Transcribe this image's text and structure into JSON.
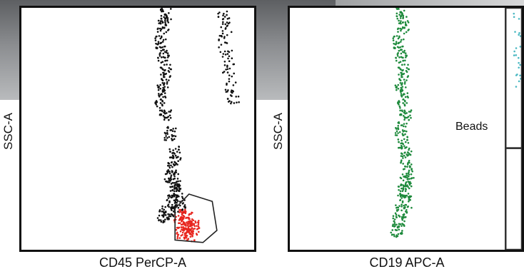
{
  "colors": {
    "panel1_points": "#111111",
    "panel1_gate_fill": "#e8261f",
    "panel1_gate_outline": "#222222",
    "panel2_points": "#1e8a3c",
    "panel2_beads": "#4bb8c2",
    "frame": "#111111"
  },
  "chart_data": [
    {
      "type": "scatter",
      "title": "",
      "xlabel": "CD45 PerCP-A",
      "ylabel": "SSC-A",
      "series": [
        {
          "color": "#111111",
          "density": "high",
          "points": [
            [
              0.62,
              0.97
            ],
            [
              0.61,
              0.92
            ],
            [
              0.6,
              0.86
            ],
            [
              0.61,
              0.8
            ],
            [
              0.62,
              0.74
            ],
            [
              0.61,
              0.68
            ],
            [
              0.6,
              0.62
            ],
            [
              0.62,
              0.56
            ],
            [
              0.64,
              0.48
            ],
            [
              0.66,
              0.4
            ],
            [
              0.65,
              0.34
            ],
            [
              0.64,
              0.3
            ],
            [
              0.66,
              0.27
            ],
            [
              0.67,
              0.24
            ],
            [
              0.65,
              0.2
            ],
            [
              0.68,
              0.18
            ],
            [
              0.63,
              0.16
            ],
            [
              0.61,
              0.14
            ]
          ]
        },
        {
          "color": "#111111",
          "density": "medium",
          "points": [
            [
              0.87,
              0.98
            ],
            [
              0.88,
              0.92
            ],
            [
              0.87,
              0.86
            ],
            [
              0.88,
              0.8
            ],
            [
              0.89,
              0.74
            ],
            [
              0.9,
              0.68
            ],
            [
              0.91,
              0.63
            ]
          ]
        },
        {
          "color": "#e8261f",
          "density": "high",
          "points": [
            [
              0.68,
              0.14
            ],
            [
              0.7,
              0.11
            ],
            [
              0.72,
              0.09
            ],
            [
              0.69,
              0.07
            ],
            [
              0.73,
              0.06
            ],
            [
              0.71,
              0.13
            ],
            [
              0.74,
              0.1
            ]
          ]
        }
      ],
      "gate": {
        "label": "",
        "polygon": [
          [
            0.66,
            0.04
          ],
          [
            0.66,
            0.17
          ],
          [
            0.72,
            0.23
          ],
          [
            0.82,
            0.2
          ],
          [
            0.84,
            0.08
          ],
          [
            0.78,
            0.03
          ]
        ]
      }
    },
    {
      "type": "scatter",
      "title": "",
      "xlabel": "CD19 APC-A",
      "ylabel": "SSC-A",
      "series": [
        {
          "color": "#1e8a3c",
          "density": "high",
          "points": [
            [
              0.48,
              0.98
            ],
            [
              0.49,
              0.92
            ],
            [
              0.47,
              0.86
            ],
            [
              0.48,
              0.8
            ],
            [
              0.49,
              0.74
            ],
            [
              0.48,
              0.68
            ],
            [
              0.49,
              0.62
            ],
            [
              0.5,
              0.56
            ],
            [
              0.48,
              0.5
            ],
            [
              0.49,
              0.44
            ],
            [
              0.5,
              0.38
            ],
            [
              0.51,
              0.32
            ],
            [
              0.5,
              0.28
            ],
            [
              0.49,
              0.24
            ],
            [
              0.5,
              0.2
            ],
            [
              0.48,
              0.16
            ],
            [
              0.47,
              0.12
            ],
            [
              0.46,
              0.08
            ]
          ]
        },
        {
          "color": "#4bb8c2",
          "density": "low",
          "points": [
            [
              0.99,
              0.98
            ],
            [
              0.99,
              0.9
            ],
            [
              0.99,
              0.82
            ],
            [
              0.99,
              0.76
            ],
            [
              0.99,
              0.7
            ]
          ]
        }
      ],
      "gates": [
        {
          "label": "Beads",
          "x_range": [
            0.93,
            1.0
          ],
          "y_range": [
            0.42,
            1.0
          ]
        },
        {
          "label": "",
          "x_range": [
            0.93,
            1.0
          ],
          "y_range": [
            0.0,
            0.42
          ]
        }
      ]
    }
  ],
  "annotations": {
    "beads_label": "Beads"
  }
}
